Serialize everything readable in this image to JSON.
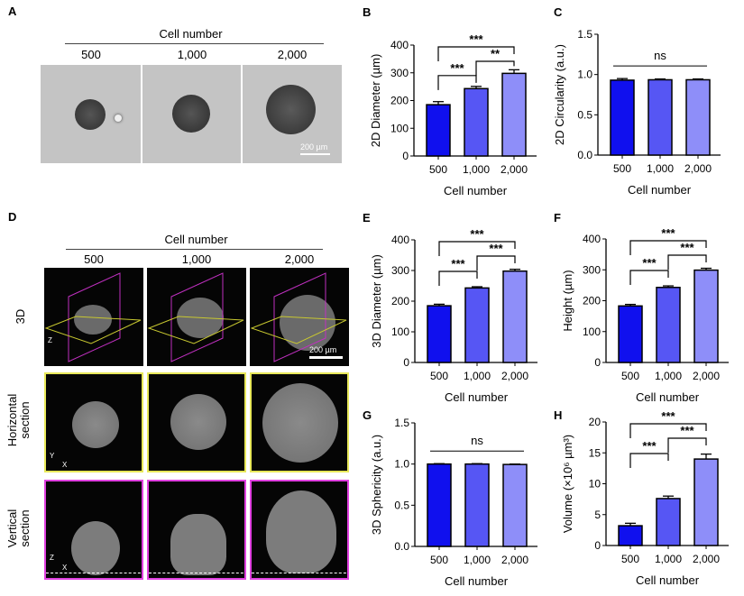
{
  "panels": {
    "A": {
      "label": "A",
      "header": "Cell number",
      "columns": [
        "500",
        "1,000",
        "2,000"
      ],
      "scale_bar": "200 µm"
    },
    "D": {
      "label": "D",
      "header": "Cell number",
      "columns": [
        "500",
        "1,000",
        "2,000"
      ],
      "rows": [
        "3D",
        "Horizontal section",
        "Vertical section"
      ],
      "scale_bar": "200 µm",
      "axes_3d": [
        "Z",
        "Y",
        "X"
      ],
      "axes_horizontal": [
        "Y",
        "X"
      ],
      "axes_vertical": [
        "Z",
        "X"
      ]
    }
  },
  "colors": {
    "bar_500": "#1010ee",
    "bar_1000": "#5656f4",
    "bar_2000": "#8e8ef9",
    "horizontal_frame": "#e8e85a",
    "vertical_frame": "#e040e0"
  },
  "chart_data": [
    {
      "panel": "B",
      "type": "bar",
      "categories": [
        "500",
        "1,000",
        "2,000"
      ],
      "values": [
        185,
        243,
        298
      ],
      "errors": [
        11,
        8,
        13
      ],
      "ylim": [
        0,
        400
      ],
      "yticks": [
        0,
        100,
        200,
        300,
        400
      ],
      "ylabel": "2D Diameter (µm)",
      "xlabel": "Cell number",
      "significance": [
        {
          "pair": [
            0,
            1
          ],
          "label": "***"
        },
        {
          "pair": [
            1,
            2
          ],
          "label": "**"
        },
        {
          "pair": [
            0,
            2
          ],
          "label": "***"
        }
      ]
    },
    {
      "panel": "C",
      "type": "bar",
      "categories": [
        "500",
        "1,000",
        "2,000"
      ],
      "values": [
        0.93,
        0.935,
        0.935
      ],
      "errors": [
        0.02,
        0.01,
        0.01
      ],
      "ylim": [
        0,
        1.5
      ],
      "yticks": [
        "0.0",
        "0.5",
        "1.0",
        "1.5"
      ],
      "ylabel": "2D Circularity (a.u.)",
      "xlabel": "Cell number",
      "significance": [
        {
          "pair": [
            0,
            2
          ],
          "label": "ns",
          "line_only": true
        }
      ]
    },
    {
      "panel": "E",
      "type": "bar",
      "categories": [
        "500",
        "1,000",
        "2,000"
      ],
      "values": [
        185,
        243,
        298
      ],
      "errors": [
        5,
        4,
        6
      ],
      "ylim": [
        0,
        400
      ],
      "yticks": [
        0,
        100,
        200,
        300,
        400
      ],
      "ylabel": "3D Diameter (µm)",
      "xlabel": "Cell number",
      "significance": [
        {
          "pair": [
            0,
            1
          ],
          "label": "***"
        },
        {
          "pair": [
            1,
            2
          ],
          "label": "***"
        },
        {
          "pair": [
            0,
            2
          ],
          "label": "***"
        }
      ]
    },
    {
      "panel": "F",
      "type": "bar",
      "categories": [
        "500",
        "1,000",
        "2,000"
      ],
      "values": [
        183,
        243,
        299
      ],
      "errors": [
        5,
        5,
        6
      ],
      "ylim": [
        0,
        400
      ],
      "yticks": [
        0,
        100,
        200,
        300,
        400
      ],
      "ylabel": "Height (µm)",
      "xlabel": "Cell number",
      "significance": [
        {
          "pair": [
            0,
            1
          ],
          "label": "***"
        },
        {
          "pair": [
            1,
            2
          ],
          "label": "***"
        },
        {
          "pair": [
            0,
            2
          ],
          "label": "***"
        }
      ]
    },
    {
      "panel": "G",
      "type": "bar",
      "categories": [
        "500",
        "1,000",
        "2,000"
      ],
      "values": [
        1.0,
        1.0,
        0.995
      ],
      "errors": [
        0.005,
        0.005,
        0.005
      ],
      "ylim": [
        0,
        1.5
      ],
      "yticks": [
        "0.0",
        "0.5",
        "1.0",
        "1.5"
      ],
      "ylabel": "3D Sphericity (a.u.)",
      "xlabel": "Cell number",
      "significance": [
        {
          "pair": [
            0,
            2
          ],
          "label": "ns",
          "line_only": true
        }
      ]
    },
    {
      "panel": "H",
      "type": "bar",
      "categories": [
        "500",
        "1,000",
        "2,000"
      ],
      "values": [
        3.2,
        7.6,
        14.0
      ],
      "errors": [
        0.4,
        0.4,
        0.8
      ],
      "ylim": [
        0,
        20
      ],
      "yticks": [
        0,
        5,
        10,
        15,
        20
      ],
      "ylabel": "Volume (×10⁶ µm³)",
      "xlabel": "Cell number",
      "significance": [
        {
          "pair": [
            0,
            1
          ],
          "label": "***"
        },
        {
          "pair": [
            1,
            2
          ],
          "label": "***"
        },
        {
          "pair": [
            0,
            2
          ],
          "label": "***"
        }
      ]
    }
  ]
}
